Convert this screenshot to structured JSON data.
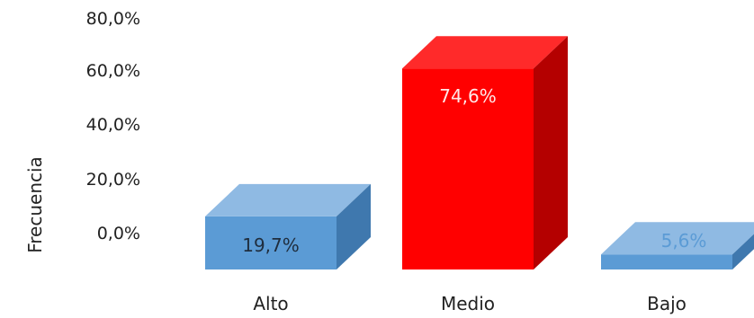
{
  "chart_data": {
    "type": "bar",
    "style": "3d",
    "categories": [
      "Alto",
      "Medio",
      "Bajo"
    ],
    "values": [
      19.7,
      74.6,
      5.6
    ],
    "value_labels": [
      "19,7%",
      "74,6%",
      "5,6%"
    ],
    "ylabel": "Frecuencia",
    "y_tick_labels": [
      "80,0%",
      "60,0%",
      "40,0%",
      "20,0%",
      "0,0%"
    ],
    "y_ticks": [
      80,
      60,
      40,
      20,
      0
    ],
    "ylim": [
      0,
      80
    ],
    "grid": false,
    "legend": "none",
    "colors": {
      "Alto": {
        "front": "#5b9bd5",
        "top": "#8fbae3",
        "side": "#3f78ae",
        "label": "#1f2d3d"
      },
      "Medio": {
        "front": "#ff0000",
        "top": "#ff2a2a",
        "side": "#b40000",
        "label": "#ffe8e8"
      },
      "Bajo": {
        "front": "#5b9bd5",
        "top": "#8fbae3",
        "side": "#3f78ae",
        "label": "#5b9bd5"
      }
    },
    "text_color": "#222222"
  }
}
